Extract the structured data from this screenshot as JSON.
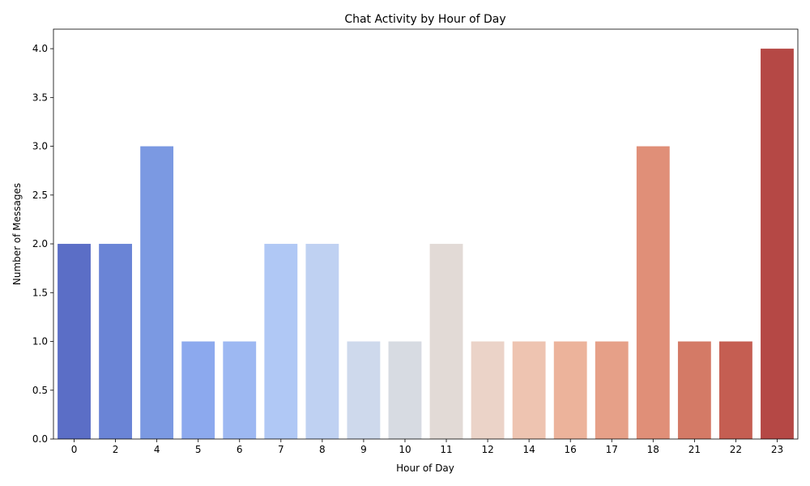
{
  "chart_data": {
    "type": "bar",
    "title": "Chat Activity by Hour of Day",
    "xlabel": "Hour of Day",
    "ylabel": "Number of Messages",
    "categories": [
      "0",
      "2",
      "4",
      "5",
      "6",
      "7",
      "8",
      "9",
      "10",
      "11",
      "12",
      "14",
      "16",
      "17",
      "18",
      "21",
      "22",
      "23"
    ],
    "values": [
      2,
      2,
      3,
      1,
      1,
      2,
      2,
      1,
      1,
      2,
      1,
      1,
      1,
      1,
      3,
      1,
      1,
      4
    ],
    "colors": [
      "#5b6ec6",
      "#6a84d6",
      "#7b99e2",
      "#8ca9ee",
      "#9db8f2",
      "#b0c8f5",
      "#bfd1f2",
      "#ced9ec",
      "#d7dbe2",
      "#e2dad6",
      "#ebd3c8",
      "#eec4b1",
      "#ecb39b",
      "#e6a088",
      "#e08f78",
      "#d47a66",
      "#c55e52",
      "#b54845"
    ],
    "ylim": [
      0,
      4.2
    ],
    "yticks": [
      "0.0",
      "0.5",
      "1.0",
      "1.5",
      "2.0",
      "2.5",
      "3.0",
      "3.5",
      "4.0"
    ],
    "grid": false,
    "legend": false
  }
}
